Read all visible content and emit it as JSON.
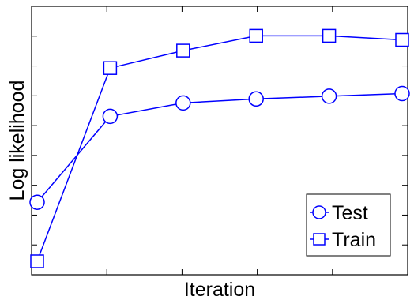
{
  "chart_data": {
    "type": "line",
    "title": "",
    "xlabel": "Iteration",
    "ylabel": "Log likelihood",
    "x": [
      1,
      2,
      3,
      4,
      5,
      6
    ],
    "xlim": [
      1,
      6
    ],
    "ylim": [
      0,
      1
    ],
    "grid": false,
    "legend_position": "bottom-right",
    "series": [
      {
        "name": "Test",
        "marker": "circle",
        "color": "#0000ff",
        "values": [
          0.27,
          0.59,
          0.64,
          0.655,
          0.665,
          0.675
        ]
      },
      {
        "name": "Train",
        "marker": "square",
        "color": "#0000ff",
        "values": [
          0.05,
          0.77,
          0.835,
          0.89,
          0.89,
          0.875
        ]
      }
    ]
  }
}
